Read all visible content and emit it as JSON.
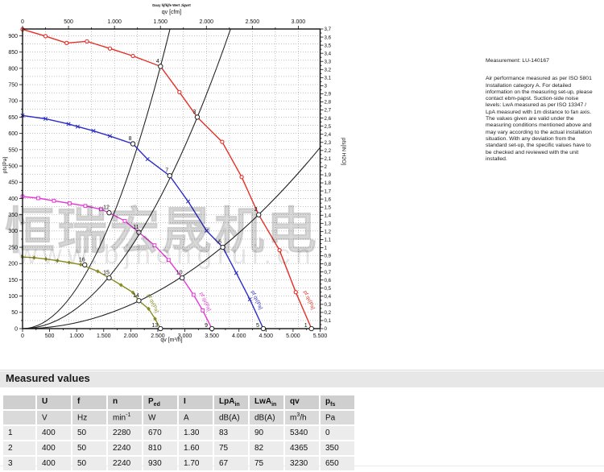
{
  "watermark": {
    "line1": "恒瑞宏晟机电",
    "line2": "www.bjhengrui.cn"
  },
  "note": {
    "title": "Measurement: LU-140167",
    "body": "Air performance measured as per ISO 5801\nInstallation category A. For detailed\ninformation on the measuring set-up, please\ncontact ebm-papst. Suction-side noise\nlevels: LwA measured as per ISO 13347 /\nLpA measured with 1m distance to fan axis.\nThe values given are valid under the\nmeasuring conditions mentioned above and\nmay vary according to the actual installation\nsituation. With any deviation from the\nstandard set-up, the specific values have to\nbe checked and reviewed with the unit\ninstalled."
  },
  "section": {
    "title": "Measured values"
  },
  "table": {
    "header": [
      {
        "b": "",
        "s": ""
      },
      {
        "b": "U",
        "s": ""
      },
      {
        "b": "f",
        "s": ""
      },
      {
        "b": "n",
        "s": ""
      },
      {
        "b": "P",
        "s": "ed"
      },
      {
        "b": "I",
        "s": ""
      },
      {
        "b": "LpA",
        "s": "in"
      },
      {
        "b": "LwA",
        "s": "in"
      },
      {
        "b": "qv",
        "s": ""
      },
      {
        "b": "p",
        "s": "fs"
      }
    ],
    "units": [
      {
        "a": "",
        "sup": "",
        "c": ""
      },
      {
        "a": "V",
        "sup": "",
        "c": ""
      },
      {
        "a": "Hz",
        "sup": "",
        "c": ""
      },
      {
        "a": "min",
        "sup": "-1",
        "c": ""
      },
      {
        "a": "W",
        "sup": "",
        "c": ""
      },
      {
        "a": "A",
        "sup": "",
        "c": ""
      },
      {
        "a": "dB(A)",
        "sup": "",
        "c": ""
      },
      {
        "a": "dB(A)",
        "sup": "",
        "c": ""
      },
      {
        "a": "m",
        "sup": "3",
        "c": "/h"
      },
      {
        "a": "Pa",
        "sup": "",
        "c": ""
      }
    ],
    "rows": [
      [
        "1",
        "400",
        "50",
        "2280",
        "670",
        "1.30",
        "83",
        "90",
        "5340",
        "0"
      ],
      [
        "2",
        "400",
        "50",
        "2240",
        "810",
        "1.60",
        "75",
        "82",
        "4365",
        "350"
      ],
      [
        "3",
        "400",
        "50",
        "2240",
        "930",
        "1.70",
        "67",
        "75",
        "3230",
        "650"
      ]
    ]
  },
  "chart_data": {
    "type": "line",
    "title_small": "Dauy hjfkjfe Wert Jigwrt",
    "x_axis_top": {
      "label": "qv [cfm]",
      "min": 0,
      "max": 3250,
      "major_step": 500,
      "minor_step": 250
    },
    "x_axis_bottom": {
      "label": "qv [m³/h]",
      "min": 0,
      "max": 5500,
      "major_step": 500,
      "minor_step": 250
    },
    "y_axis_left": {
      "label": "pfs[Pa]",
      "min": 0,
      "max": 921,
      "major_step": 50,
      "minor_step": 25
    },
    "y_axis_right": {
      "label": "pfs[IN H2O]",
      "min": 0,
      "max": 3.7,
      "major_step": 0.1,
      "minor_step": 0.05
    },
    "grid": {
      "vertical_every_cfm": 250,
      "horizontal_every_pa": 25
    },
    "series": [
      {
        "name": "fan-curve-1",
        "color": "#e62e26",
        "marker": "circle",
        "end_label": "pf qv[Pa]",
        "label_pos": [
          377,
          362,
          65
        ],
        "points": [
          [
            0,
            920
          ],
          [
            425,
            899
          ],
          [
            815,
            878
          ],
          [
            1190,
            883
          ],
          [
            1615,
            861
          ],
          [
            2040,
            838
          ],
          [
            2550,
            806
          ],
          [
            2900,
            727
          ],
          [
            3230,
            650
          ],
          [
            3690,
            574
          ],
          [
            4050,
            466
          ],
          [
            4365,
            350
          ],
          [
            4750,
            241
          ],
          [
            5050,
            112
          ],
          [
            5340,
            0
          ]
        ]
      },
      {
        "name": "fan-curve-2",
        "color": "#2c2cc8",
        "marker": "x",
        "end_label": "pf qv[Pa]",
        "label_pos": [
          312,
          362,
          65
        ],
        "points": [
          [
            0,
            655
          ],
          [
            425,
            645
          ],
          [
            850,
            629
          ],
          [
            1020,
            621
          ],
          [
            1310,
            608
          ],
          [
            1615,
            592
          ],
          [
            2040,
            568
          ],
          [
            2310,
            521
          ],
          [
            2720,
            470
          ],
          [
            3060,
            391
          ],
          [
            3400,
            301
          ],
          [
            3700,
            250
          ],
          [
            3950,
            171
          ],
          [
            4200,
            90
          ],
          [
            4450,
            0
          ]
        ]
      },
      {
        "name": "fan-curve-3",
        "color": "#e438d8",
        "marker": "square",
        "end_label": "pf qv[Pa]",
        "label_pos": [
          248,
          364,
          65
        ],
        "points": [
          [
            0,
            406
          ],
          [
            290,
            401
          ],
          [
            580,
            393
          ],
          [
            870,
            385
          ],
          [
            1160,
            377
          ],
          [
            1450,
            367
          ],
          [
            1600,
            356
          ],
          [
            1890,
            331
          ],
          [
            2150,
            296
          ],
          [
            2440,
            256
          ],
          [
            2700,
            211
          ],
          [
            2950,
            156
          ],
          [
            3160,
            104
          ],
          [
            3330,
            56
          ],
          [
            3500,
            0
          ]
        ]
      },
      {
        "name": "fan-curve-4",
        "color": "#8a8a23",
        "marker": "diamond",
        "end_label": "pf qv[Pa]",
        "label_pos": [
          183,
          366,
          65
        ],
        "points": [
          [
            0,
            220
          ],
          [
            215,
            218
          ],
          [
            430,
            214
          ],
          [
            645,
            209
          ],
          [
            860,
            203
          ],
          [
            1075,
            197
          ],
          [
            1390,
            176
          ],
          [
            1600,
            156
          ],
          [
            1820,
            134
          ],
          [
            2040,
            111
          ],
          [
            2150,
            86
          ],
          [
            2330,
            61
          ],
          [
            2450,
            30
          ],
          [
            2550,
            0
          ]
        ]
      }
    ],
    "system_curves": [
      {
        "name": "system-parabola-1",
        "k": 0.000124
      },
      {
        "name": "system-parabola-2",
        "k": 6.23e-05
      },
      {
        "name": "system-parabola-3",
        "k": 1.84e-05
      }
    ],
    "operating_points": [
      {
        "n": "1",
        "qv": 5340,
        "pfs": 0,
        "on_axis": true
      },
      {
        "n": "2",
        "qv": 4365,
        "pfs": 350
      },
      {
        "n": "3",
        "qv": 3230,
        "pfs": 650
      },
      {
        "n": "4",
        "qv": 2550,
        "pfs": 806
      },
      {
        "n": "5",
        "qv": 4450,
        "pfs": 0,
        "on_axis": true
      },
      {
        "n": "6",
        "qv": 3700,
        "pfs": 250
      },
      {
        "n": "7",
        "qv": 2720,
        "pfs": 470
      },
      {
        "n": "8",
        "qv": 2040,
        "pfs": 568
      },
      {
        "n": "9",
        "qv": 3500,
        "pfs": 0,
        "on_axis": true
      },
      {
        "n": "10",
        "qv": 2950,
        "pfs": 156
      },
      {
        "n": "11",
        "qv": 2150,
        "pfs": 296
      },
      {
        "n": "12",
        "qv": 1600,
        "pfs": 356
      },
      {
        "n": "13",
        "qv": 2550,
        "pfs": 0,
        "on_axis": true
      },
      {
        "n": "14",
        "qv": 2150,
        "pfs": 86
      },
      {
        "n": "15",
        "qv": 1600,
        "pfs": 156
      },
      {
        "n": "16",
        "qv": 1150,
        "pfs": 196
      }
    ]
  }
}
